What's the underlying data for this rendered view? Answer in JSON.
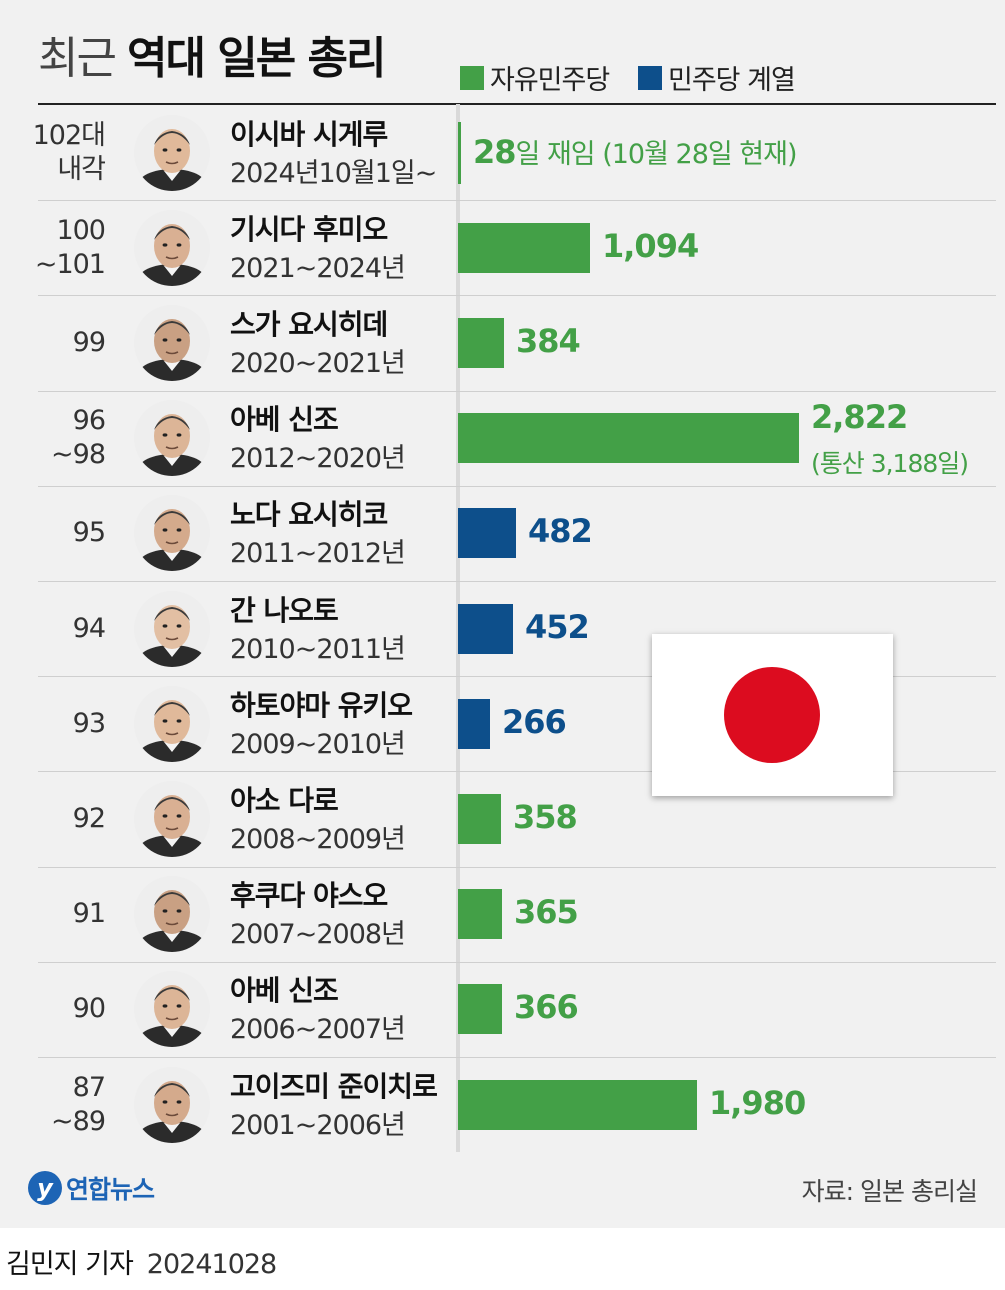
{
  "title": {
    "light": "최근",
    "bold": "역대 일본 총리"
  },
  "legend": [
    {
      "label": "자유민주당",
      "color": "#43a047"
    },
    {
      "label": "민주당 계열",
      "color": "#0d4f8b"
    }
  ],
  "chart_data": {
    "type": "bar",
    "orientation": "horizontal",
    "unit": "일",
    "series": [
      {
        "name": "자유민주당",
        "color": "#43a047"
      },
      {
        "name": "민주당 계열",
        "color": "#0d4f8b"
      }
    ],
    "rows": [
      {
        "gen": "102대\n내각",
        "name": "이시바 시게루",
        "term": "2024년10월1일~",
        "value": 28,
        "party": "자유민주당",
        "label_number": "28",
        "label_rest": "일 재임 (10월 28일 현재)",
        "note": ""
      },
      {
        "gen": "100\n~101",
        "name": "기시다 후미오",
        "term": "2021~2024년",
        "value": 1094,
        "party": "자유민주당",
        "label_number": "1,094",
        "label_rest": "",
        "note": ""
      },
      {
        "gen": "99",
        "name": "스가 요시히데",
        "term": "2020~2021년",
        "value": 384,
        "party": "자유민주당",
        "label_number": "384",
        "label_rest": "",
        "note": ""
      },
      {
        "gen": "96\n~98",
        "name": "아베 신조",
        "term": "2012~2020년",
        "value": 2822,
        "party": "자유민주당",
        "label_number": "2,822",
        "label_rest": "",
        "note": "(통산 3,188일)"
      },
      {
        "gen": "95",
        "name": "노다 요시히코",
        "term": "2011~2012년",
        "value": 482,
        "party": "민주당 계열",
        "label_number": "482",
        "label_rest": "",
        "note": ""
      },
      {
        "gen": "94",
        "name": "간 나오토",
        "term": "2010~2011년",
        "value": 452,
        "party": "민주당 계열",
        "label_number": "452",
        "label_rest": "",
        "note": ""
      },
      {
        "gen": "93",
        "name": "하토야마 유키오",
        "term": "2009~2010년",
        "value": 266,
        "party": "민주당 계열",
        "label_number": "266",
        "label_rest": "",
        "note": ""
      },
      {
        "gen": "92",
        "name": "아소 다로",
        "term": "2008~2009년",
        "value": 358,
        "party": "자유민주당",
        "label_number": "358",
        "label_rest": "",
        "note": ""
      },
      {
        "gen": "91",
        "name": "후쿠다 야스오",
        "term": "2007~2008년",
        "value": 365,
        "party": "자유민주당",
        "label_number": "365",
        "label_rest": "",
        "note": ""
      },
      {
        "gen": "90",
        "name": "아베 신조",
        "term": "2006~2007년",
        "value": 366,
        "party": "자유민주당",
        "label_number": "366",
        "label_rest": "",
        "note": ""
      },
      {
        "gen": "87\n~89",
        "name": "고이즈미 준이치로",
        "term": "2001~2006년",
        "value": 1980,
        "party": "자유민주당",
        "label_number": "1,980",
        "label_rest": "",
        "note": ""
      }
    ]
  },
  "footer": {
    "logo_text": "연합뉴스",
    "source": "자료: 일본 총리실",
    "reporter": "김민지 기자",
    "date": "20241028"
  }
}
